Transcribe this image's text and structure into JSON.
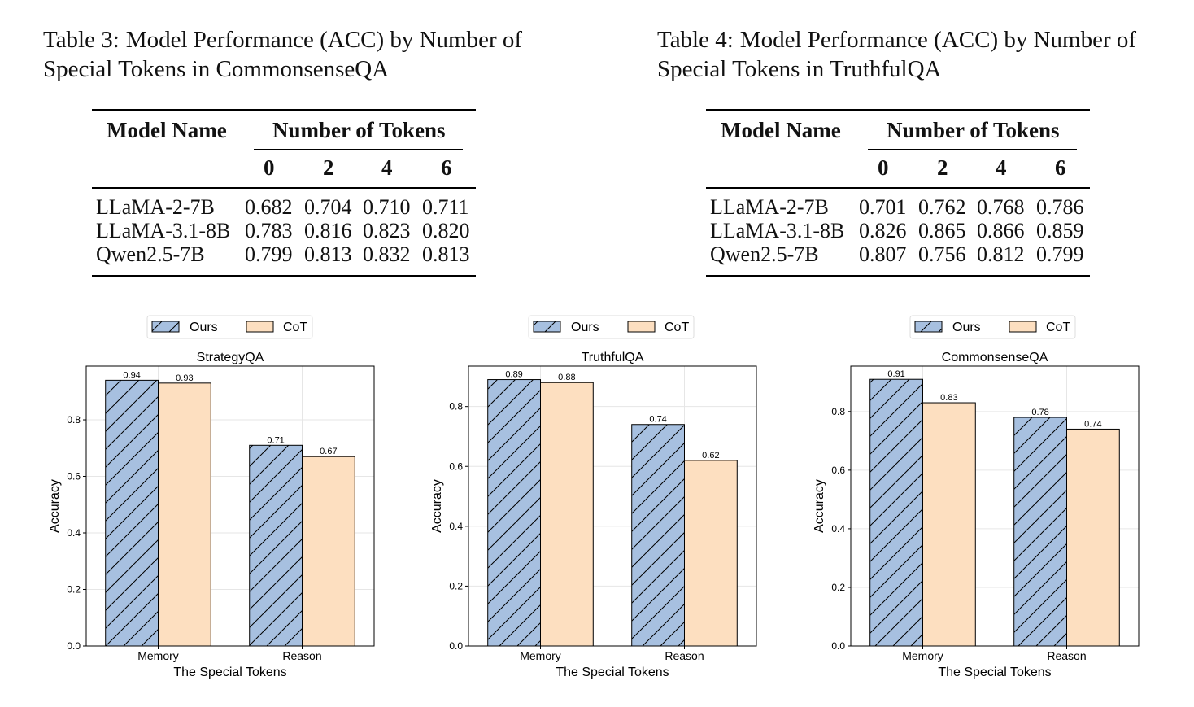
{
  "tables": [
    {
      "label": "Table 3:",
      "caption": "Model Performance (ACC) by Number of Special Tokens in CommonsenseQA",
      "header_model": "Model Name",
      "header_group": "Number of Tokens",
      "token_counts": [
        "0",
        "2",
        "4",
        "6"
      ],
      "rows": [
        {
          "model": "LLaMA-2-7B",
          "values": [
            "0.682",
            "0.704",
            "0.710",
            "0.711"
          ]
        },
        {
          "model": "LLaMA-3.1-8B",
          "values": [
            "0.783",
            "0.816",
            "0.823",
            "0.820"
          ]
        },
        {
          "model": "Qwen2.5-7B",
          "values": [
            "0.799",
            "0.813",
            "0.832",
            "0.813"
          ]
        }
      ]
    },
    {
      "label": "Table 4:",
      "caption": "Model Performance (ACC) by Number of Special Tokens in TruthfulQA",
      "header_model": "Model Name",
      "header_group": "Number of Tokens",
      "token_counts": [
        "0",
        "2",
        "4",
        "6"
      ],
      "rows": [
        {
          "model": "LLaMA-2-7B",
          "values": [
            "0.701",
            "0.762",
            "0.768",
            "0.786"
          ]
        },
        {
          "model": "LLaMA-3.1-8B",
          "values": [
            "0.826",
            "0.865",
            "0.866",
            "0.859"
          ]
        },
        {
          "model": "Qwen2.5-7B",
          "values": [
            "0.807",
            "0.756",
            "0.812",
            "0.799"
          ]
        }
      ]
    }
  ],
  "chart_data": [
    {
      "type": "bar",
      "title": "StrategyQA",
      "xlabel": "The Special Tokens",
      "ylabel": "Accuracy",
      "categories": [
        "Memory",
        "Reason"
      ],
      "series": [
        {
          "name": "Ours",
          "values": [
            0.94,
            0.71
          ]
        },
        {
          "name": "CoT",
          "values": [
            0.93,
            0.67
          ]
        }
      ],
      "ylim": [
        0,
        0.99
      ],
      "yticks": [
        "0.0",
        "0.2",
        "0.4",
        "0.6",
        "0.8"
      ],
      "grid": true,
      "legend": "top-center"
    },
    {
      "type": "bar",
      "title": "TruthfulQA",
      "xlabel": "The Special Tokens",
      "ylabel": "Accuracy",
      "categories": [
        "Memory",
        "Reason"
      ],
      "series": [
        {
          "name": "Ours",
          "values": [
            0.89,
            0.74
          ]
        },
        {
          "name": "CoT",
          "values": [
            0.88,
            0.62
          ]
        }
      ],
      "ylim": [
        0,
        0.935
      ],
      "yticks": [
        "0.0",
        "0.2",
        "0.4",
        "0.6",
        "0.8"
      ],
      "grid": true,
      "legend": "top-center"
    },
    {
      "type": "bar",
      "title": "CommonsenseQA",
      "xlabel": "The Special Tokens",
      "ylabel": "Accuracy",
      "categories": [
        "Memory",
        "Reason"
      ],
      "series": [
        {
          "name": "Ours",
          "values": [
            0.91,
            0.78
          ]
        },
        {
          "name": "CoT",
          "values": [
            0.83,
            0.74
          ]
        }
      ],
      "ylim": [
        0,
        0.955
      ],
      "yticks": [
        "0.0",
        "0.2",
        "0.4",
        "0.6",
        "0.8"
      ],
      "grid": true,
      "legend": "top-center"
    }
  ],
  "colors": {
    "ours_fill": "#a7c0e0",
    "cot_fill": "#fddfc0",
    "edge": "#000000",
    "grid": "#e6e6e6"
  }
}
